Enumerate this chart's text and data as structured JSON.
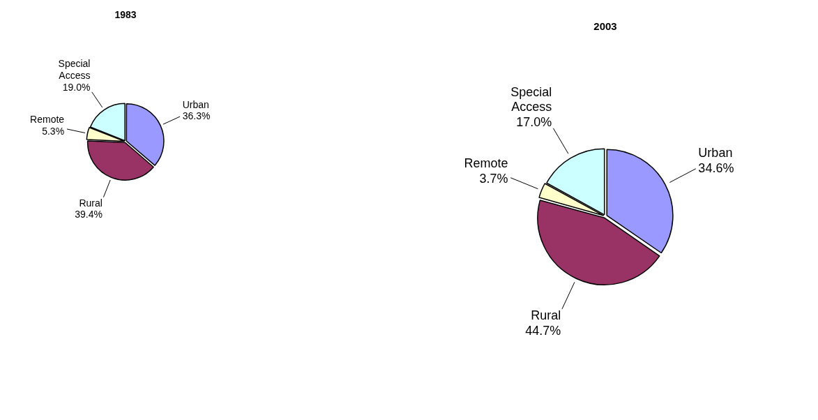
{
  "chart_data": [
    {
      "type": "pie",
      "title": "1983",
      "categories": [
        "Urban",
        "Rural",
        "Remote",
        "Special Access"
      ],
      "values": [
        36.3,
        39.4,
        5.3,
        19.0
      ],
      "value_labels": [
        "36.3%",
        "39.4%",
        "5.3%",
        "19.0%"
      ],
      "colors": [
        "#9999ff",
        "#993366",
        "#ffffcc",
        "#ccffff"
      ],
      "legend": false
    },
    {
      "type": "pie",
      "title": "2003",
      "categories": [
        "Urban",
        "Rural",
        "Remote",
        "Special Access"
      ],
      "values": [
        34.6,
        44.7,
        3.7,
        17.0
      ],
      "value_labels": [
        "34.6%",
        "44.7%",
        "3.7%",
        "17.0%"
      ],
      "colors": [
        "#9999ff",
        "#993366",
        "#ffffcc",
        "#ccffff"
      ],
      "legend": false
    }
  ]
}
